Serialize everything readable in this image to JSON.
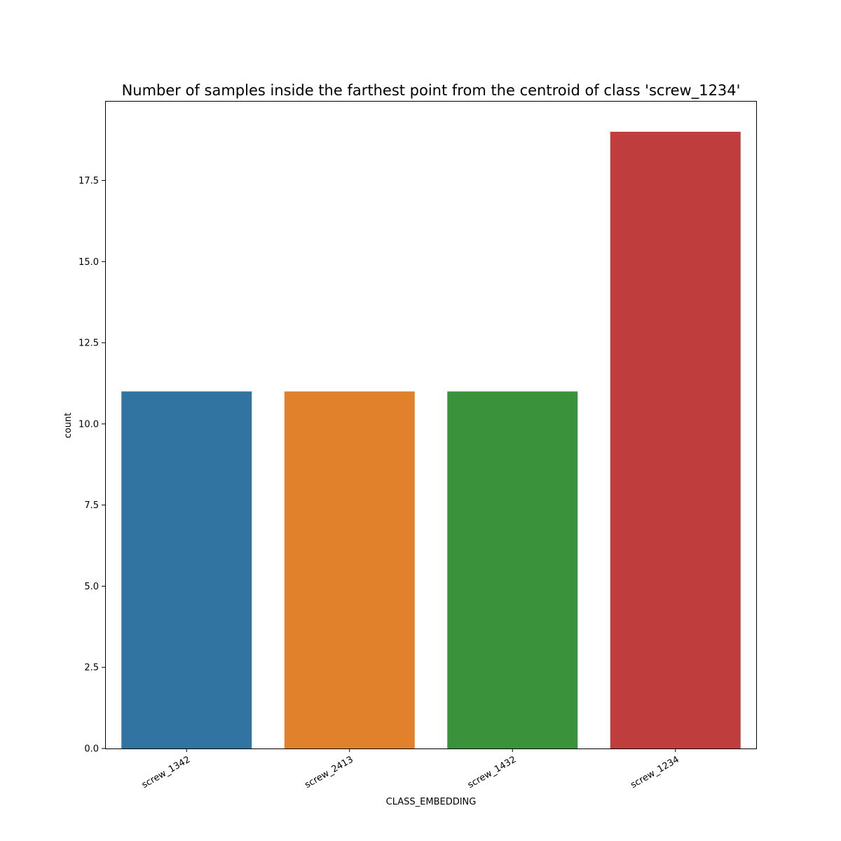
{
  "chart_data": {
    "type": "bar",
    "title": "Number of samples inside the farthest point from the centroid of class 'screw_1234'",
    "xlabel": "CLASS_EMBEDDING",
    "ylabel": "count",
    "categories": [
      "screw_1342",
      "screw_2413",
      "screw_1432",
      "screw_1234"
    ],
    "values": [
      11,
      11,
      11,
      19
    ],
    "colors": [
      "#3274a1",
      "#e1812c",
      "#3a923a",
      "#c03d3e"
    ],
    "ylim": [
      0,
      19.95
    ],
    "yticks": [
      "0.0",
      "2.5",
      "5.0",
      "7.5",
      "10.0",
      "12.5",
      "15.0",
      "17.5"
    ],
    "grid": false,
    "legend": "none"
  }
}
